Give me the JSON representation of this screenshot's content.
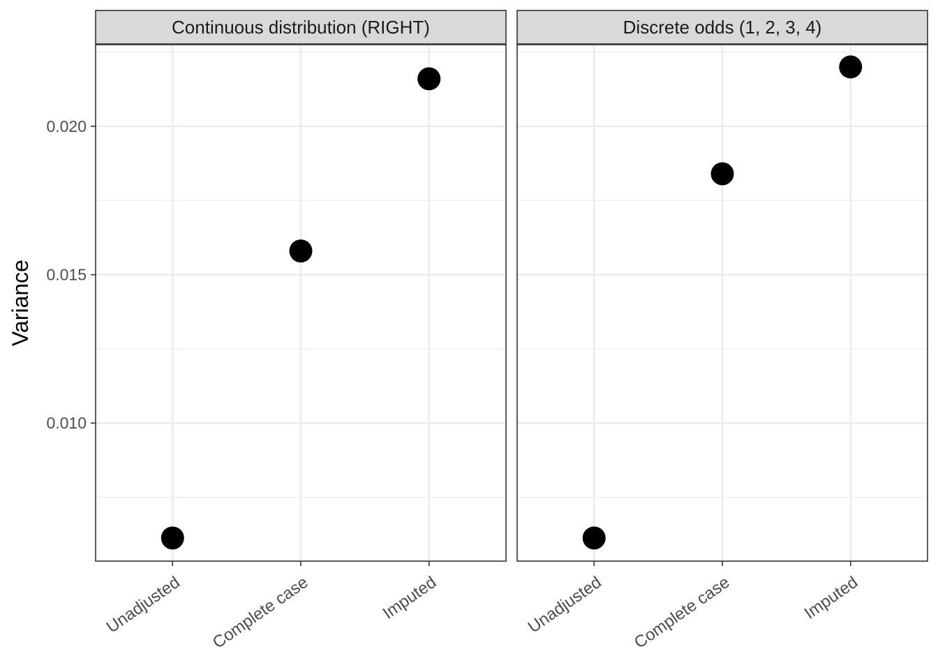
{
  "chart_data": {
    "type": "scatter",
    "ylabel": "Variance",
    "xlabel": "",
    "categories": [
      "Unadjusted",
      "Complete case",
      "Imputed"
    ],
    "y_ticks": [
      0.01,
      0.015,
      0.02
    ],
    "y_tick_labels": [
      "0.010",
      "0.015",
      "0.020"
    ],
    "ylim": [
      0.00535,
      0.02275
    ],
    "grid": true,
    "theme": "bw",
    "point_color": "#000000",
    "panels": [
      {
        "strip": "Continuous distribution (RIGHT)",
        "values": [
          0.00613,
          0.0158,
          0.0216
        ]
      },
      {
        "strip": "Discrete odds (1, 2, 3, 4)",
        "values": [
          0.00613,
          0.0184,
          0.022
        ]
      }
    ]
  }
}
